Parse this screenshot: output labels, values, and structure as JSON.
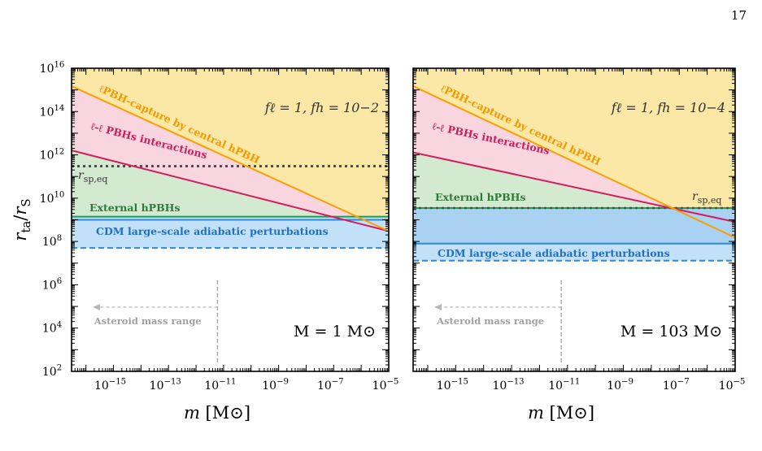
{
  "page_number": "17",
  "colors": {
    "yellow_fill": "#fbe7a6",
    "pink_fill": "#f9d5df",
    "green_fill": "#d3e9d0",
    "lightblue_fill": "#c2e0f7",
    "blue_fill": "#a9d2f2",
    "orange_line": "#f7a100",
    "crimson_line": "#d01e5d",
    "green_line": "#1c9c5a",
    "blue_line": "#2f8ad6",
    "dotted_line": "#4b4b5a",
    "green_text": "#2f7a35",
    "blue_text": "#1f6fc4",
    "crimson_text": "#cc1f5f",
    "orange_text": "#f29b00",
    "gray": "#a0a0a0"
  },
  "chart_data": [
    {
      "type": "line",
      "xscale": "log",
      "yscale": "log",
      "xlim": [
        3e-17,
        1e-05
      ],
      "ylim": [
        100,
        1e+16
      ],
      "xlabel": "m [M⊙]",
      "ylabel": "r_ta/r_S",
      "x_ticks": [
        "10−15",
        "10−13",
        "10−11",
        "10−9",
        "10−7",
        "10−5"
      ],
      "y_ticks": [
        "10^2",
        "10^4",
        "10^6",
        "10^8",
        "10^10",
        "10^12",
        "10^14",
        "10^16"
      ],
      "params_label": "fℓ = 1, fh = 10−2",
      "mass_label": "M = 1 M⊙",
      "regions": [
        {
          "name": "ℓPBH-capture by central hPBH",
          "color": "yellow"
        },
        {
          "name": "ℓ-ℓ PBHs interactions",
          "color": "pink"
        },
        {
          "name": "External hPBHs",
          "color": "green"
        },
        {
          "name": "CDM large-scale adiabatic perturbations",
          "color": "lightblue"
        }
      ],
      "series": [
        {
          "name": "ℓPBH-capture by central hPBH",
          "x": [
            3e-17,
            1e-05
          ],
          "y": [
            1500000000000000.0,
            300000000.0
          ]
        },
        {
          "name": "ℓ-ℓ PBHs interactions",
          "x": [
            3e-17,
            1e-05
          ],
          "y": [
            1600000000000.0,
            300000000.0
          ]
        },
        {
          "name": "External hPBHs",
          "x": [
            3e-17,
            1e-05
          ],
          "y": [
            1400000000.0,
            1400000000.0
          ]
        },
        {
          "name": "CDM large-scale adiabatic perturbations",
          "x": [
            3e-17,
            1e-05
          ],
          "y": [
            1000000000.0,
            1000000000.0
          ]
        },
        {
          "name": "CDM (dashed)",
          "x": [
            3e-17,
            1e-05
          ],
          "y": [
            50000000.0,
            50000000.0
          ]
        },
        {
          "name": "r_sp,eq",
          "x": [
            3e-17,
            1e-05
          ],
          "y": [
            300000000000.0,
            300000000000.0
          ]
        }
      ],
      "rsp_label": "r_sp,eq",
      "asteroid_label": "Asteroid mass range",
      "asteroid_limit_x": 6e-12
    },
    {
      "type": "line",
      "xscale": "log",
      "yscale": "log",
      "xlim": [
        3e-17,
        1e-05
      ],
      "ylim": [
        100,
        1e+16
      ],
      "xlabel": "m [M⊙]",
      "x_ticks": [
        "10−15",
        "10−13",
        "10−11",
        "10−9",
        "10−7",
        "10−5"
      ],
      "params_label": "fℓ = 1, fh = 10−4",
      "mass_label": "M = 10^3 M⊙",
      "regions": [
        {
          "name": "ℓPBH-capture by central hPBH",
          "color": "yellow"
        },
        {
          "name": "ℓ-ℓ PBHs interactions",
          "color": "pink"
        },
        {
          "name": "External hPBHs",
          "color": "green"
        },
        {
          "name": "CDM large-scale adiabatic perturbations",
          "color": "blue"
        }
      ],
      "series": [
        {
          "name": "ℓPBH-capture by central hPBH",
          "x": [
            3e-17,
            1e-05
          ],
          "y": [
            1500000000000000.0,
            150000000.0
          ]
        },
        {
          "name": "ℓ-ℓ PBHs interactions",
          "x": [
            3e-17,
            1e-05
          ],
          "y": [
            1300000000000.0,
            800000000.0
          ]
        },
        {
          "name": "r_sp,eq",
          "x": [
            3e-17,
            1e-05
          ],
          "y": [
            3500000000.0,
            3500000000.0
          ]
        },
        {
          "name": "CDM large-scale adiabatic perturbations",
          "x": [
            3e-17,
            1e-05
          ],
          "y": [
            80000000.0,
            80000000.0
          ]
        },
        {
          "name": "CDM (dashed)",
          "x": [
            3e-17,
            1e-05
          ],
          "y": [
            13000000.0,
            13000000.0
          ]
        }
      ],
      "rsp_label": "r_sp,eq",
      "asteroid_label": "Asteroid mass range",
      "asteroid_limit_x": 6e-12
    }
  ]
}
